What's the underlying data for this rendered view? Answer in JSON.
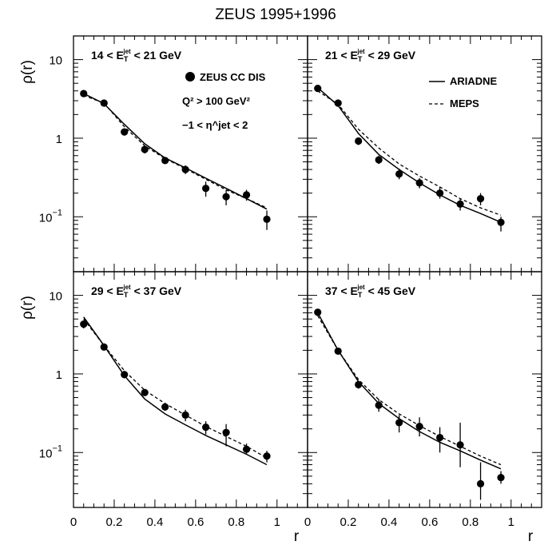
{
  "title": "ZEUS 1995+1996",
  "chart_data": {
    "type": "scatter",
    "title": "ZEUS 1995+1996",
    "xlabel": "r",
    "ylabel": "ρ(r)",
    "xlim": [
      0,
      1.15
    ],
    "ylim": [
      0.02,
      20
    ],
    "yscale": "log",
    "x_ticks": [
      {
        "v": 0,
        "label": "0"
      },
      {
        "v": 0.2,
        "label": "0.2"
      },
      {
        "v": 0.4,
        "label": "0.4"
      },
      {
        "v": 0.6,
        "label": "0.6"
      },
      {
        "v": 0.8,
        "label": "0.8"
      },
      {
        "v": 1,
        "label": "1"
      }
    ],
    "y_ticks": [
      {
        "v": 10,
        "base": "10",
        "exp": ""
      },
      {
        "v": 1,
        "base": "1",
        "exp": ""
      },
      {
        "v": 0.1,
        "base": "10",
        "exp": "−1"
      }
    ],
    "legend": {
      "data_label": "ZEUS CC DIS",
      "cut_q2": "Q² > 100 GeV²",
      "cut_eta": "−1 < η^jet < 2",
      "ariadne": "ARIADNE",
      "meps": "MEPS"
    },
    "panels": [
      {
        "label": "14 < E_T^jet < 21 GeV",
        "label_parts": [
          "14 < E",
          "T",
          "jet",
          " < 21 GeV"
        ],
        "x": [
          0.05,
          0.15,
          0.25,
          0.35,
          0.45,
          0.55,
          0.65,
          0.75,
          0.85,
          0.95
        ],
        "data": [
          3.7,
          2.8,
          1.2,
          0.72,
          0.52,
          0.4,
          0.23,
          0.18,
          0.19,
          0.093
        ],
        "err_lo": [
          3.4,
          2.6,
          1.1,
          0.64,
          0.47,
          0.35,
          0.18,
          0.14,
          0.16,
          0.068
        ],
        "err_hi": [
          4.0,
          3.0,
          1.3,
          0.8,
          0.57,
          0.45,
          0.28,
          0.22,
          0.22,
          0.12
        ],
        "ariadne": [
          3.7,
          2.75,
          1.5,
          0.85,
          0.56,
          0.42,
          0.31,
          0.23,
          0.17,
          0.125
        ],
        "meps": [
          3.5,
          2.8,
          1.4,
          0.8,
          0.55,
          0.41,
          0.3,
          0.22,
          0.17,
          0.13
        ]
      },
      {
        "label": "21 < E_T^jet < 29 GeV",
        "label_parts": [
          "21 < E",
          "T",
          "jet",
          " < 29 GeV"
        ],
        "x": [
          0.05,
          0.15,
          0.25,
          0.35,
          0.45,
          0.55,
          0.65,
          0.75,
          0.85,
          0.95
        ],
        "data": [
          4.3,
          2.8,
          0.92,
          0.53,
          0.35,
          0.27,
          0.2,
          0.145,
          0.17,
          0.085
        ],
        "err_lo": [
          4.0,
          2.6,
          0.82,
          0.47,
          0.3,
          0.23,
          0.17,
          0.12,
          0.14,
          0.065
        ],
        "err_hi": [
          4.6,
          3.0,
          1.02,
          0.6,
          0.41,
          0.31,
          0.24,
          0.17,
          0.2,
          0.1
        ],
        "ariadne": [
          4.4,
          2.6,
          1.15,
          0.62,
          0.4,
          0.27,
          0.19,
          0.14,
          0.11,
          0.085
        ],
        "meps": [
          4.0,
          2.7,
          1.3,
          0.75,
          0.47,
          0.33,
          0.24,
          0.17,
          0.13,
          0.105
        ]
      },
      {
        "label": "29 < E_T^jet < 37 GeV",
        "label_parts": [
          "29 < E",
          "T",
          "jet",
          " < 37 GeV"
        ],
        "x": [
          0.05,
          0.15,
          0.25,
          0.35,
          0.45,
          0.55,
          0.65,
          0.75,
          0.85,
          0.95
        ],
        "data": [
          4.3,
          2.2,
          0.98,
          0.58,
          0.38,
          0.3,
          0.21,
          0.18,
          0.11,
          0.09
        ],
        "err_lo": [
          3.8,
          2.1,
          0.88,
          0.53,
          0.34,
          0.25,
          0.17,
          0.12,
          0.095,
          0.075
        ],
        "err_hi": [
          4.8,
          2.4,
          1.1,
          0.63,
          0.43,
          0.35,
          0.25,
          0.23,
          0.13,
          0.105
        ],
        "ariadne": [
          5.3,
          2.3,
          0.95,
          0.48,
          0.31,
          0.225,
          0.165,
          0.125,
          0.095,
          0.07
        ],
        "meps": [
          5.0,
          2.3,
          1.1,
          0.62,
          0.42,
          0.3,
          0.215,
          0.16,
          0.12,
          0.085
        ]
      },
      {
        "label": "37 < E_T^jet < 45 GeV",
        "label_parts": [
          "37 < E",
          "T",
          "jet",
          " < 45 GeV"
        ],
        "x": [
          0.05,
          0.15,
          0.25,
          0.35,
          0.45,
          0.55,
          0.65,
          0.75,
          0.85,
          0.95
        ],
        "data": [
          6.1,
          1.95,
          0.73,
          0.4,
          0.24,
          0.215,
          0.155,
          0.125,
          0.04,
          0.048
        ],
        "err_lo": [
          5.6,
          1.8,
          0.65,
          0.33,
          0.18,
          0.16,
          0.1,
          0.065,
          0.025,
          0.04
        ],
        "err_hi": [
          6.6,
          2.1,
          0.82,
          0.48,
          0.3,
          0.28,
          0.21,
          0.24,
          0.075,
          0.058
        ],
        "ariadne": [
          6.0,
          2.0,
          0.8,
          0.42,
          0.27,
          0.185,
          0.135,
          0.105,
          0.08,
          0.062
        ],
        "meps": [
          5.5,
          2.0,
          0.85,
          0.47,
          0.31,
          0.22,
          0.16,
          0.12,
          0.09,
          0.07
        ]
      }
    ]
  }
}
